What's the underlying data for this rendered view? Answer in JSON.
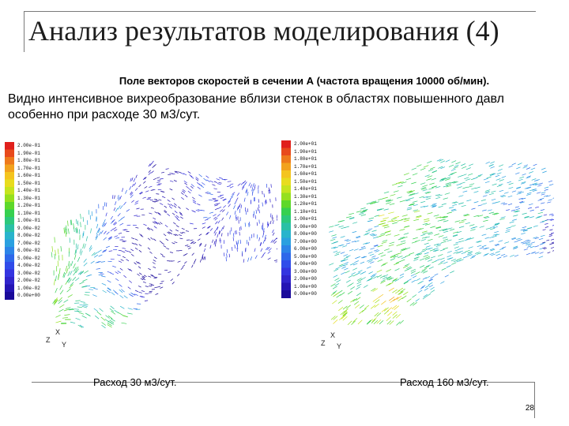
{
  "slide": {
    "title": "Анализ результатов моделирования (4)",
    "subtitle": "Поле векторов скоростей в сечении А (частота вращения 10000 об/мин).",
    "description_line1": "Видно интенсивное вихреобразование вблизи стенок в областях повышенного давл",
    "description_line2": "особенно при расходе 30 м3/сут.",
    "page_number": "28"
  },
  "left_plot": {
    "legend": [
      "2.00e-01",
      "1.90e-01",
      "1.80e-01",
      "1.70e-01",
      "1.60e-01",
      "1.50e-01",
      "1.40e-01",
      "1.30e-01",
      "1.20e-01",
      "1.10e-01",
      "1.00e-01",
      "9.00e-02",
      "8.00e-02",
      "7.00e-02",
      "6.00e-02",
      "5.00e-02",
      "4.00e-02",
      "3.00e-02",
      "2.00e-02",
      "1.00e-02",
      "0.00e+00"
    ],
    "axis_x": "X",
    "axis_y": "Y",
    "axis_z": "Z",
    "caption": "Расход 30 м3/сут."
  },
  "right_plot": {
    "legend": [
      "2.00e+01",
      "1.90e+01",
      "1.80e+01",
      "1.70e+01",
      "1.60e+01",
      "1.50e+01",
      "1.40e+01",
      "1.30e+01",
      "1.20e+01",
      "1.10e+01",
      "1.00e+01",
      "9.00e+00",
      "8.00e+00",
      "7.00e+00",
      "6.00e+00",
      "5.00e+00",
      "4.00e+00",
      "3.00e+00",
      "2.00e+00",
      "1.00e+00",
      "0.00e+00"
    ],
    "axis_x": "X",
    "axis_y": "Y",
    "axis_z": "Z",
    "caption": "Расход 160 м3/сут."
  },
  "colors": {
    "legend_scale": [
      "#e0201c",
      "#e84a1c",
      "#ee7a1c",
      "#f2a21e",
      "#f4c41e",
      "#e8dc1e",
      "#c6e41e",
      "#96e01e",
      "#5ed82a",
      "#36d050",
      "#2cc87c",
      "#2ac0a6",
      "#28b4cc",
      "#2aa0e0",
      "#2c84e8",
      "#2e68ea",
      "#304cea",
      "#3434e0",
      "#3024cc",
      "#2414b4",
      "#1a0a9a"
    ]
  }
}
